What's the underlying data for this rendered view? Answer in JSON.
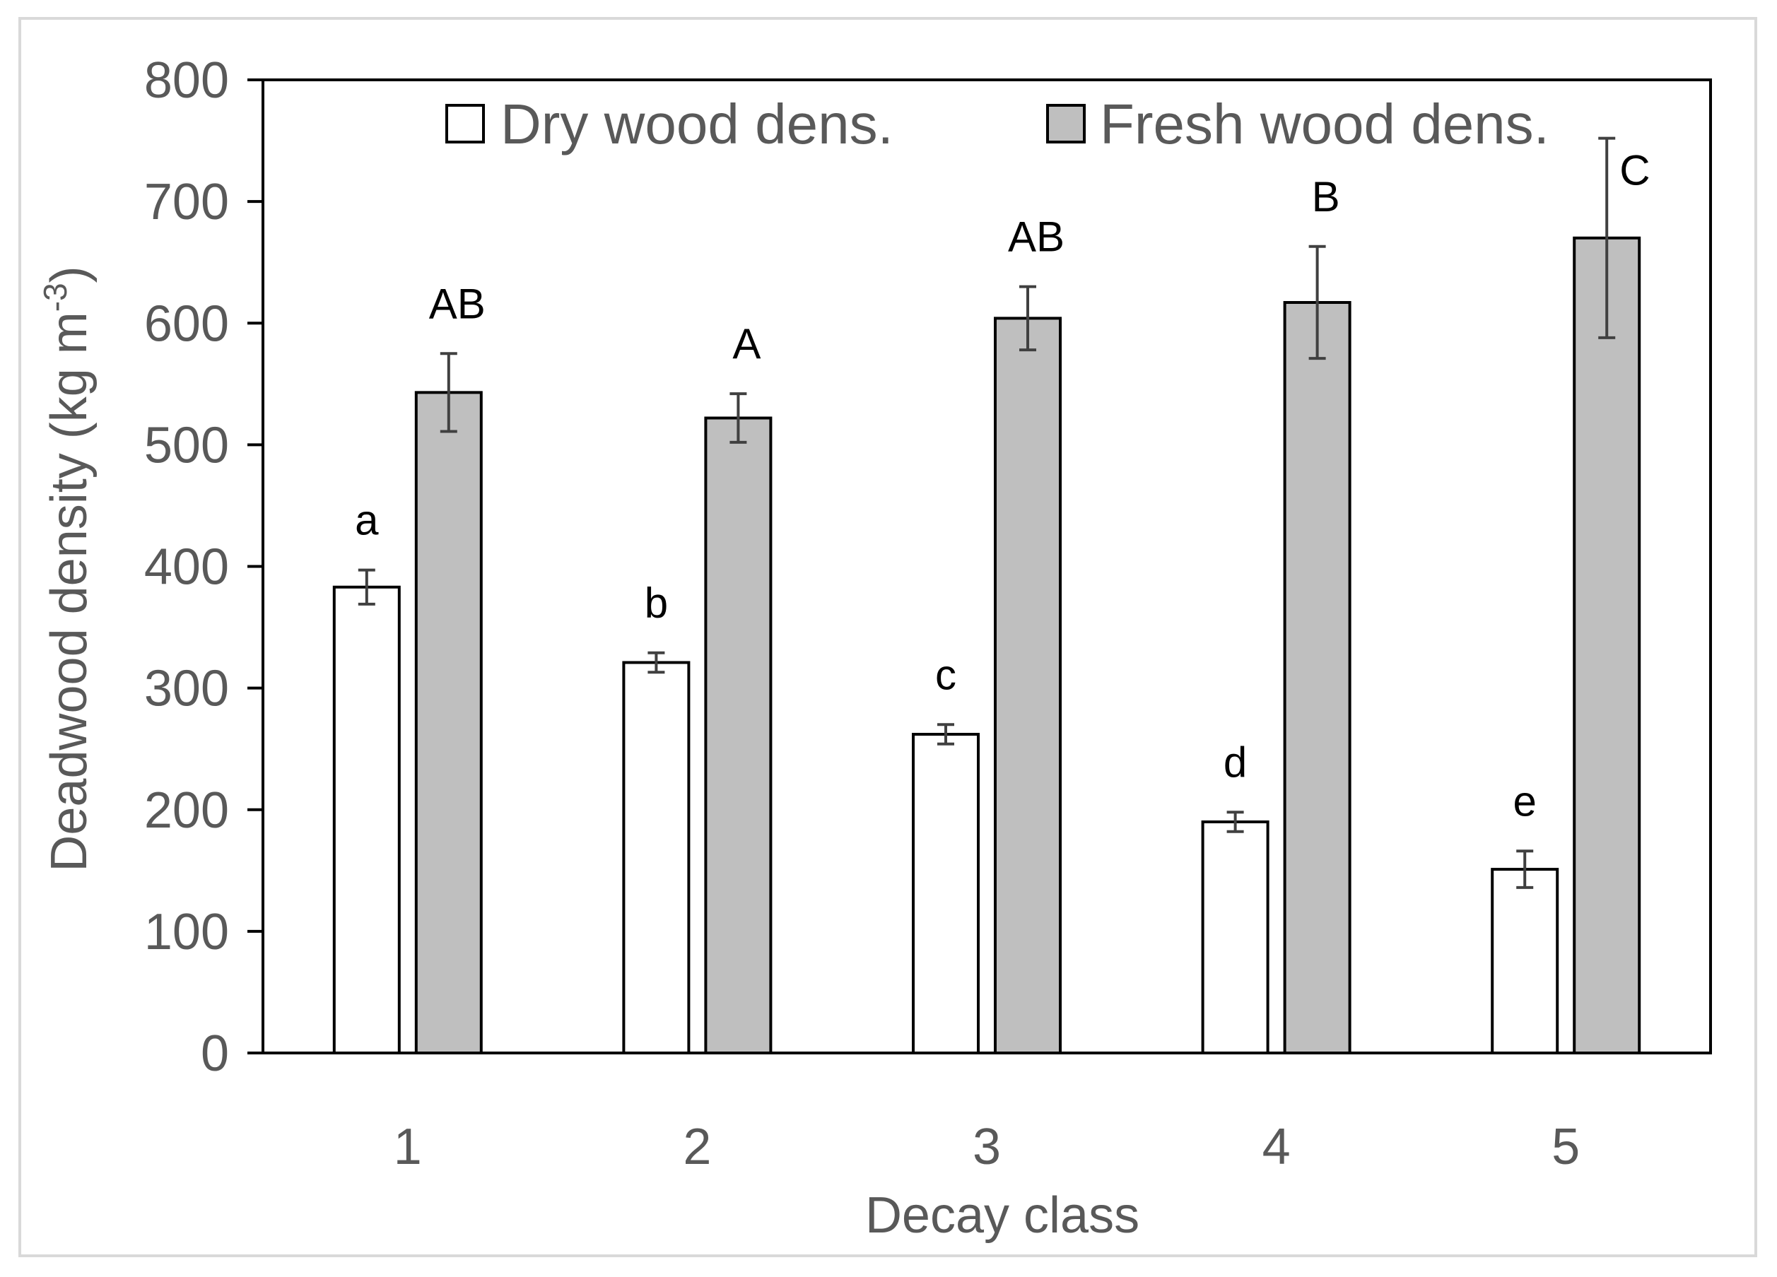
{
  "chart_data": {
    "type": "bar",
    "xlabel": "Decay class",
    "ylabel_main": "Deadwood density (kg  m",
    "ylabel_sup": "-3",
    "ylabel_close": ")",
    "ylim": [
      0,
      800
    ],
    "yticks": [
      0,
      100,
      200,
      300,
      400,
      500,
      600,
      700,
      800
    ],
    "categories": [
      "1",
      "2",
      "3",
      "4",
      "5"
    ],
    "legend_position": "top",
    "series": [
      {
        "name": "Dry wood dens.",
        "color": "#ffffff",
        "values": [
          383,
          321,
          262,
          190,
          151
        ],
        "errors": [
          14,
          8,
          8,
          8,
          15
        ],
        "letters": [
          "a",
          "b",
          "c",
          "d",
          "e"
        ]
      },
      {
        "name": "Fresh wood dens.",
        "color": "#bfbfbf",
        "values": [
          543,
          522,
          604,
          617,
          670
        ],
        "errors": [
          32,
          20,
          26,
          46,
          82
        ],
        "letters": [
          "AB",
          "A",
          "AB",
          "B",
          "C"
        ]
      }
    ]
  }
}
